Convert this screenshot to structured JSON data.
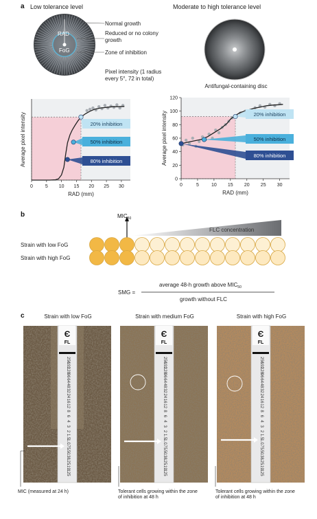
{
  "panel_a": {
    "label": "a",
    "left_title": "Low tolerance level",
    "right_title": "Moderate to high tolerance level",
    "disc_labels": {
      "rad": "RAD",
      "fog": "FoG"
    },
    "callouts": [
      "Normal growth",
      "Reduced or no colony growth",
      "Zone of inhibition",
      "Pixel intensity (1 radius every 5°, 72 in total)"
    ],
    "right_caption": "Antifungal-containing disc",
    "inhibition_labels": [
      "20% inhibition",
      "50% inhibition",
      "80% inhibition"
    ],
    "inhibition_colors": [
      "#bfe3f3",
      "#4ab0dc",
      "#2e4f93"
    ]
  },
  "chart_data": [
    {
      "type": "line",
      "xlabel": "RAD (mm)",
      "ylabel": "Average pixel intensity",
      "xlim": [
        0,
        33
      ],
      "ylim": [
        0,
        126
      ],
      "x_ticks": [
        0,
        5,
        10,
        15,
        20,
        25,
        30
      ],
      "y_ticks": [],
      "curve_x": [
        0,
        2,
        4,
        6,
        8,
        9,
        10,
        10.8,
        11.4,
        12,
        12.8,
        13.6,
        14.5,
        15.5,
        16.5,
        18,
        19.5,
        21,
        23,
        25,
        27,
        29,
        31
      ],
      "curve_y": [
        0,
        0,
        0,
        0,
        0.5,
        2,
        8,
        20,
        40,
        58,
        70,
        78,
        85,
        92,
        98,
        103,
        107,
        110,
        112,
        113,
        114,
        114,
        114.5
      ],
      "scatter_x": [
        18.5,
        19.5,
        20.5,
        21.5,
        22.5,
        23.5,
        24.5,
        25.5,
        26.5,
        27.5,
        28.5,
        29.5,
        30.5
      ],
      "scatter_y": [
        108,
        110,
        112,
        109,
        114,
        111,
        116,
        112,
        115,
        113,
        117,
        112,
        116
      ],
      "marker_points": [
        [
          16.5,
          98
        ],
        [
          14.0,
          59
        ],
        [
          12.0,
          32
        ]
      ],
      "shade_x": [
        0,
        16.5
      ]
    },
    {
      "type": "line",
      "xlabel": "RAD (mm)",
      "ylabel": "Average pixel intensity",
      "xlim": [
        0,
        33
      ],
      "ylim": [
        0,
        120
      ],
      "x_ticks": [
        0,
        5,
        10,
        15,
        20,
        25,
        30
      ],
      "y_ticks": [
        0,
        20,
        40,
        60,
        80,
        100,
        120
      ],
      "curve_x": [
        0,
        2,
        4,
        6,
        8,
        10,
        12,
        14,
        15,
        16,
        17,
        18,
        20,
        22,
        24,
        26,
        28,
        30,
        31
      ],
      "curve_y": [
        52,
        54,
        56,
        58,
        62,
        68,
        74,
        82,
        88,
        92,
        95,
        98,
        101,
        104,
        106,
        108,
        109,
        109.5,
        110
      ],
      "scatter_x": [
        0.5,
        1.5,
        2.5,
        3.5,
        4.5,
        5.5,
        6.5,
        7.5,
        8.5,
        9.5,
        10.5,
        11.5,
        12.5,
        13.5,
        14.5,
        15.5,
        18,
        19.5,
        21,
        22.5,
        24,
        25.5,
        27,
        28.5,
        30
      ],
      "scatter_y": [
        50,
        57,
        52,
        60,
        48,
        55,
        62,
        58,
        66,
        60,
        72,
        68,
        76,
        80,
        85,
        90,
        97,
        100,
        101,
        105,
        108,
        106,
        110,
        108,
        111
      ],
      "marker_points": [
        [
          16.5,
          92
        ],
        [
          7.0,
          58
        ],
        [
          0.0,
          52
        ]
      ],
      "shade_x": [
        0,
        16.5
      ]
    }
  ],
  "panel_b": {
    "label": "b",
    "mic": "MIC",
    "mic_sub": "50",
    "gradient_label": "FLC concentration",
    "rows": [
      "Strain with low FoG",
      "Strain with high FoG"
    ],
    "smg_label": "SMG =",
    "numerator": "average 48-h growth above MIC",
    "numerator_sub": "50",
    "denominator": "growth without FLC",
    "circle_colors": [
      "#f2b845",
      "#fde9c0",
      "#fdf0d3"
    ]
  },
  "panel_c": {
    "label": "c",
    "titles": [
      "Strain with low FoG",
      "Strain with medium FoG",
      "Strain with high FoG"
    ],
    "strip_brand": "FL",
    "strip_scale": [
      "256",
      "192",
      "128",
      "96",
      "64",
      "48",
      "32",
      "24",
      "16",
      "12",
      "8",
      "6",
      "4",
      "3",
      "2",
      "1.5",
      "1.0",
      ".75",
      ".50",
      ".38",
      ".25",
      ".19",
      ".125"
    ],
    "captions": [
      "MIC (measured at 24 h)",
      "Tolerant cells growing within the zone of inhibition at 48 h",
      "Tolerant cells growing within the zone of inhibition at 48 h"
    ]
  }
}
